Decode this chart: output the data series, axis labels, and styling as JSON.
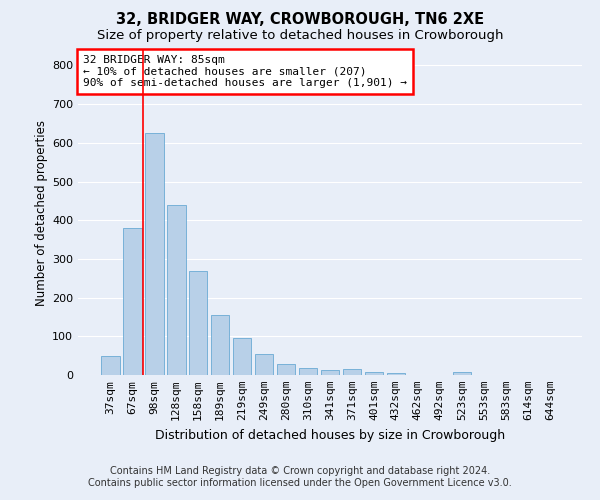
{
  "title_line1": "32, BRIDGER WAY, CROWBOROUGH, TN6 2XE",
  "title_line2": "Size of property relative to detached houses in Crowborough",
  "xlabel": "Distribution of detached houses by size in Crowborough",
  "ylabel": "Number of detached properties",
  "categories": [
    "37sqm",
    "67sqm",
    "98sqm",
    "128sqm",
    "158sqm",
    "189sqm",
    "219sqm",
    "249sqm",
    "280sqm",
    "310sqm",
    "341sqm",
    "371sqm",
    "401sqm",
    "432sqm",
    "462sqm",
    "492sqm",
    "523sqm",
    "553sqm",
    "583sqm",
    "614sqm",
    "644sqm"
  ],
  "values": [
    48,
    380,
    625,
    440,
    268,
    155,
    96,
    55,
    28,
    18,
    12,
    15,
    8,
    5,
    0,
    0,
    8,
    0,
    0,
    0,
    0
  ],
  "bar_color": "#b8d0e8",
  "bar_edge_color": "#6aaad4",
  "vline_color": "red",
  "vline_x": 1.5,
  "annotation_text_line1": "32 BRIDGER WAY: 85sqm",
  "annotation_text_line2": "← 10% of detached houses are smaller (207)",
  "annotation_text_line3": "90% of semi-detached houses are larger (1,901) →",
  "ylim": [
    0,
    840
  ],
  "yticks": [
    0,
    100,
    200,
    300,
    400,
    500,
    600,
    700,
    800
  ],
  "footer_line1": "Contains HM Land Registry data © Crown copyright and database right 2024.",
  "footer_line2": "Contains public sector information licensed under the Open Government Licence v3.0.",
  "bg_color": "#e8eef8",
  "plot_bg_color": "#e8eef8",
  "grid_color": "#ffffff",
  "title1_fontsize": 10.5,
  "title2_fontsize": 9.5,
  "xlabel_fontsize": 9,
  "ylabel_fontsize": 8.5,
  "tick_fontsize": 8,
  "footer_fontsize": 7,
  "ann_fontsize": 8
}
